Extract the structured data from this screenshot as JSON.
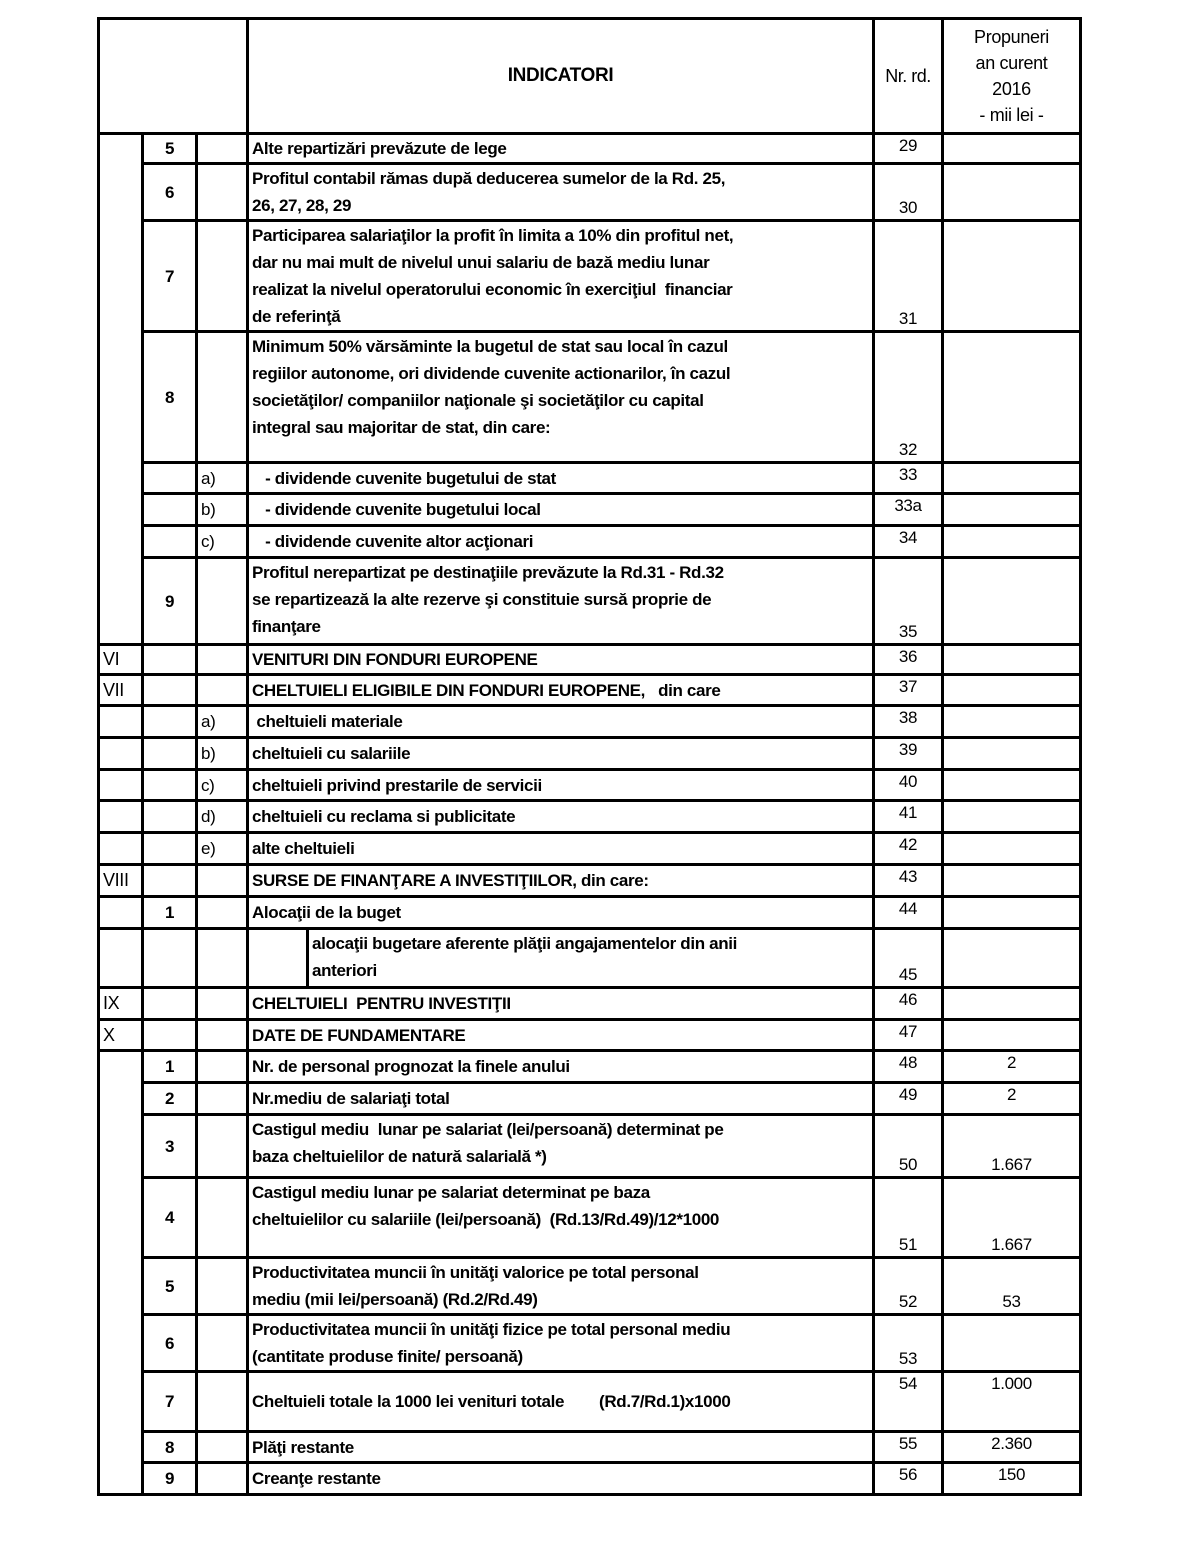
{
  "header": {
    "indicatori": "INDICATORI",
    "nr_rd": "Nr. rd.",
    "propuneri": "Propuneri\nan curent\n2016\n- mii lei -"
  },
  "rows": [
    {
      "roman": "",
      "num": "5",
      "letter": "",
      "text": "Alte repartizări prevăzute de lege",
      "nr": "29",
      "value": "",
      "h": 30
    },
    {
      "roman": "",
      "num": "6",
      "letter": "",
      "text": "Profitul contabil rămas după deducerea sumelor de la Rd. 25,\n26, 27, 28, 29",
      "nr": "30",
      "value": "",
      "h": 57
    },
    {
      "roman": "",
      "num": "7",
      "letter": "",
      "text": "Participarea salariaţilor la profit în limita a 10% din profitul net,\ndar nu mai mult de nivelul unui salariu de bază mediu lunar\nrealizat la nivelul operatorului economic în exerciţiul  financiar\nde referinţă",
      "nr": "31",
      "value": "",
      "h": 110
    },
    {
      "roman": "",
      "num": "8",
      "letter": "",
      "text": "Minimum 50% vărsăminte la bugetul de stat sau local în cazul\nregiilor autonome, ori dividende cuvenite actionarilor, în cazul\nsocietăţilor/ companiilor naţionale şi societăţilor cu capital\nintegral sau majoritar de stat, din care:",
      "nr": "32",
      "value": "",
      "h": 131
    },
    {
      "roman": "",
      "num": "",
      "letter": "a)",
      "text": "   - dividende cuvenite bugetului de stat",
      "nr": "33",
      "value": "",
      "h": 31
    },
    {
      "roman": "",
      "num": "",
      "letter": "b)",
      "text": "   - dividende cuvenite bugetului local",
      "nr": "33a",
      "value": "",
      "h": 32
    },
    {
      "roman": "",
      "num": "",
      "letter": "c)",
      "text": "   - dividende cuvenite altor acţionari",
      "nr": "34",
      "value": "",
      "h": 32
    },
    {
      "roman": "",
      "num": "9",
      "letter": "",
      "text": "Profitul nerepartizat pe destinaţiile prevăzute la Rd.31 - Rd.32\nse repartizează la alte rezerve şi constituie sursă proprie de\nfinanţare",
      "nr": "35",
      "value": "",
      "h": 87
    },
    {
      "roman": "VI",
      "num": "",
      "letter": "",
      "text": "VENITURI DIN FONDURI EUROPENE",
      "nr": "36",
      "value": "",
      "h": 30
    },
    {
      "roman": "VII",
      "num": "",
      "letter": "",
      "text": "CHELTUIELI ELIGIBILE DIN FONDURI EUROPENE,   din care",
      "nr": "37",
      "value": "",
      "h": 31
    },
    {
      "roman": "",
      "num": "",
      "letter": "a)",
      "text": " cheltuieli materiale",
      "nr": "38",
      "value": "",
      "h": 32
    },
    {
      "roman": "",
      "num": "",
      "letter": "b)",
      "text": "cheltuieli cu salariile",
      "nr": "39",
      "value": "",
      "h": 32
    },
    {
      "roman": "",
      "num": "",
      "letter": "c)",
      "text": "cheltuieli privind prestarile de servicii",
      "nr": "40",
      "value": "",
      "h": 31
    },
    {
      "roman": "",
      "num": "",
      "letter": "d)",
      "text": "cheltuieli cu reclama si publicitate",
      "nr": "41",
      "value": "",
      "h": 32
    },
    {
      "roman": "",
      "num": "",
      "letter": "e)",
      "text": "alte cheltuieli",
      "nr": "42",
      "value": "",
      "h": 32
    },
    {
      "roman": "VIII",
      "num": "",
      "letter": "",
      "text": "SURSE DE FINANŢARE A INVESTIŢIILOR, din care:",
      "nr": "43",
      "value": "",
      "h": 32
    },
    {
      "roman": "",
      "num": "1",
      "letter": "",
      "text": "Alocaţii de la buget",
      "nr": "44",
      "value": "",
      "h": 32
    },
    {
      "roman": "",
      "num": "",
      "letter": "",
      "text": "alocaţii bugetare aferente plăţii angajamentelor din anii\nanteriori",
      "nr": "45",
      "value": "",
      "h": 56,
      "indent": true
    },
    {
      "roman": "IX",
      "num": "",
      "letter": "",
      "text": "CHELTUIELI  PENTRU INVESTIŢII",
      "nr": "46",
      "value": "",
      "h": 32
    },
    {
      "roman": "X",
      "num": "",
      "letter": "",
      "text": "DATE DE FUNDAMENTARE",
      "nr": "47",
      "value": "",
      "h": 31
    },
    {
      "roman": "",
      "num": "1",
      "letter": "",
      "text": "Nr. de personal prognozat la finele anului",
      "nr": "48",
      "value": "2",
      "h": 32
    },
    {
      "roman": "",
      "num": "2",
      "letter": "",
      "text": "Nr.mediu de salariaţi total",
      "nr": "49",
      "value": "2",
      "h": 32
    },
    {
      "roman": "",
      "num": "3",
      "letter": "",
      "text": "Castigul mediu  lunar pe salariat (lei/persoană) determinat pe\nbaza cheltuielilor de natură salarială *)",
      "nr": "50",
      "value": "1.667",
      "h": 63
    },
    {
      "roman": "",
      "num": "4",
      "letter": "",
      "text": "Castigul mediu lunar pe salariat determinat pe baza\ncheltuielilor cu salariile (lei/persoană)  (Rd.13/Rd.49)/12*1000",
      "nr": "51",
      "value": "1.667",
      "h": 80
    },
    {
      "roman": "",
      "num": "5",
      "letter": "",
      "text": "Productivitatea muncii în unităţi valorice pe total personal\nmediu (mii lei/persoană) (Rd.2/Rd.49)",
      "nr": "52",
      "value": "53",
      "h": 55
    },
    {
      "roman": "",
      "num": "6",
      "letter": "",
      "text": "Productivitatea muncii în unităţi fizice pe total personal mediu\n(cantitate produse finite/ persoană)",
      "nr": "53",
      "value": "",
      "h": 57
    },
    {
      "roman": "",
      "num": "7",
      "letter": "",
      "text": "Cheltuieli totale la 1000 lei venituri totale        (Rd.7/Rd.1)x1000",
      "nr": "54",
      "value": "1.000",
      "h": 60
    },
    {
      "roman": "",
      "num": "8",
      "letter": "",
      "text": "Plăţi restante",
      "nr": "55",
      "value": "2.360",
      "h": 31
    },
    {
      "roman": "",
      "num": "9",
      "letter": "",
      "text": "Creanţe restante",
      "nr": "56",
      "value": "150",
      "h": 32
    }
  ]
}
